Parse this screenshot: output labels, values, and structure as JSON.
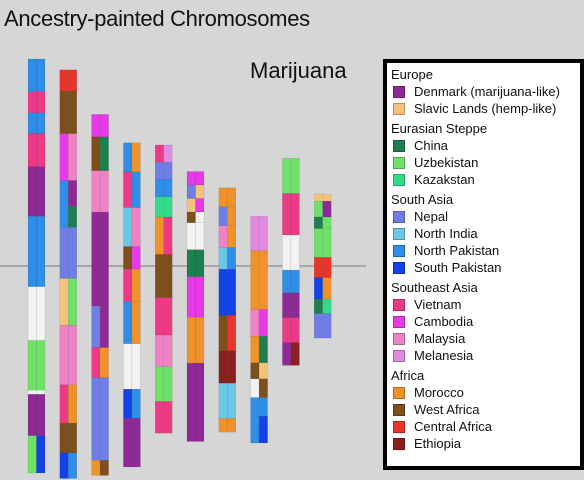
{
  "title": "Ancestry-painted Chromosomes",
  "subject": "Marijuana",
  "colors": {
    "denmark": "#8e2a95",
    "slavic": "#f5c27a",
    "china": "#1e7e4f",
    "uzbekistan": "#6fe06a",
    "kazakstan": "#33dc8a",
    "nepal": "#6f7de6",
    "north_india": "#6cc6e6",
    "north_pakistan": "#2f8ee6",
    "south_pakistan": "#1342e6",
    "vietnam": "#ec3a86",
    "cambodia": "#e63ae6",
    "malaysia": "#ee82c4",
    "melanesia": "#e28ae0",
    "morocco": "#f0922a",
    "west_africa": "#7c4f1c",
    "central_africa": "#e8352a",
    "ethiopia": "#8a1f1f",
    "unknown": "#f2f2f2"
  },
  "legend": [
    {
      "region": "Europe",
      "items": [
        {
          "label": "Denmark (marijuana-like)",
          "color_key": "denmark"
        },
        {
          "label": "Slavic Lands (hemp-like)",
          "color_key": "slavic"
        }
      ]
    },
    {
      "region": "Eurasian Steppe",
      "items": [
        {
          "label": "China",
          "color_key": "china"
        },
        {
          "label": "Uzbekistan",
          "color_key": "uzbekistan"
        },
        {
          "label": "Kazakstan",
          "color_key": "kazakstan"
        }
      ]
    },
    {
      "region": "South Asia",
      "items": [
        {
          "label": "Nepal",
          "color_key": "nepal"
        },
        {
          "label": "North India",
          "color_key": "north_india"
        },
        {
          "label": "North Pakistan",
          "color_key": "north_pakistan"
        },
        {
          "label": "South Pakistan",
          "color_key": "south_pakistan"
        }
      ]
    },
    {
      "region": "Southeast Asia",
      "items": [
        {
          "label": "Vietnam",
          "color_key": "vietnam"
        },
        {
          "label": "Cambodia",
          "color_key": "cambodia"
        },
        {
          "label": "Malaysia",
          "color_key": "malaysia"
        },
        {
          "label": "Melanesia",
          "color_key": "melanesia"
        }
      ]
    },
    {
      "region": "Africa",
      "items": [
        {
          "label": "Morocco",
          "color_key": "morocco"
        },
        {
          "label": "West Africa",
          "color_key": "west_africa"
        },
        {
          "label": "Central Africa",
          "color_key": "central_africa"
        },
        {
          "label": "Ethiopia",
          "color_key": "ethiopia"
        }
      ]
    }
  ],
  "chart_data": {
    "type": "heatmap",
    "title": "Ancestry-painted Chromosomes",
    "subtitle": "Marijuana",
    "length_units": "fraction of longest chromosome",
    "centromere_line": true,
    "chromosomes": [
      {
        "index": 1,
        "length": 1.0,
        "centromere_at": 0.5,
        "haplotypes": [
          [
            [
              "north_pakistan",
              0.08
            ],
            [
              "vietnam",
              0.05
            ],
            [
              "north_pakistan",
              0.05
            ],
            [
              "vietnam",
              0.08
            ],
            [
              "denmark",
              0.12
            ],
            [
              "north_pakistan",
              0.17
            ],
            [
              "unknown",
              0.13
            ],
            [
              "uzbekistan",
              0.12
            ],
            [
              "unknown",
              0.01
            ],
            [
              "denmark",
              0.1
            ],
            [
              "uzbekistan",
              0.09
            ]
          ],
          [
            [
              "north_pakistan",
              0.08
            ],
            [
              "vietnam",
              0.05
            ],
            [
              "north_pakistan",
              0.05
            ],
            [
              "vietnam",
              0.08
            ],
            [
              "denmark",
              0.12
            ],
            [
              "north_pakistan",
              0.17
            ],
            [
              "unknown",
              0.13
            ],
            [
              "uzbekistan",
              0.12
            ],
            [
              "unknown",
              0.01
            ],
            [
              "denmark",
              0.1
            ],
            [
              "south_pakistan",
              0.09
            ]
          ]
        ]
      },
      {
        "index": 2,
        "length": 0.987,
        "centromere_at": 0.48,
        "haplotypes": [
          [
            [
              "central_africa",
              0.05
            ],
            [
              "west_africa",
              0.1
            ],
            [
              "cambodia",
              0.11
            ],
            [
              "north_pakistan",
              0.11
            ],
            [
              "nepal",
              0.12
            ],
            [
              "slavic",
              0.11
            ],
            [
              "malaysia",
              0.14
            ],
            [
              "vietnam",
              0.09
            ],
            [
              "west_africa",
              0.07
            ],
            [
              "south_pakistan",
              0.06
            ]
          ],
          [
            [
              "central_africa",
              0.05
            ],
            [
              "west_africa",
              0.1
            ],
            [
              "malaysia",
              0.11
            ],
            [
              "denmark",
              0.06
            ],
            [
              "china",
              0.05
            ],
            [
              "nepal",
              0.12
            ],
            [
              "uzbekistan",
              0.11
            ],
            [
              "malaysia",
              0.14
            ],
            [
              "morocco",
              0.09
            ],
            [
              "west_africa",
              0.07
            ],
            [
              "north_pakistan",
              0.06
            ]
          ]
        ]
      },
      {
        "index": 3,
        "length": 0.872,
        "centromere_at": 0.42,
        "haplotypes": [
          [
            [
              "cambodia",
              0.06
            ],
            [
              "west_africa",
              0.09
            ],
            [
              "malaysia",
              0.11
            ],
            [
              "denmark",
              0.25
            ],
            [
              "nepal",
              0.11
            ],
            [
              "vietnam",
              0.08
            ],
            [
              "nepal",
              0.22
            ],
            [
              "morocco",
              0.04
            ]
          ],
          [
            [
              "cambodia",
              0.06
            ],
            [
              "china",
              0.09
            ],
            [
              "malaysia",
              0.11
            ],
            [
              "denmark",
              0.25
            ],
            [
              "denmark",
              0.11
            ],
            [
              "morocco",
              0.08
            ],
            [
              "nepal",
              0.22
            ],
            [
              "west_africa",
              0.04
            ]
          ]
        ]
      },
      {
        "index": 4,
        "length": 0.783,
        "centromere_at": 0.38,
        "haplotypes": [
          [
            [
              "north_pakistan",
              0.09
            ],
            [
              "vietnam",
              0.11
            ],
            [
              "north_india",
              0.12
            ],
            [
              "west_africa",
              0.07
            ],
            [
              "vietnam",
              0.1
            ],
            [
              "north_pakistan",
              0.13
            ],
            [
              "unknown",
              0.14
            ],
            [
              "south_pakistan",
              0.09
            ],
            [
              "denmark",
              0.15
            ]
          ],
          [
            [
              "morocco",
              0.09
            ],
            [
              "north_pakistan",
              0.11
            ],
            [
              "malaysia",
              0.12
            ],
            [
              "cambodia",
              0.07
            ],
            [
              "morocco",
              0.1
            ],
            [
              "morocco",
              0.13
            ],
            [
              "unknown",
              0.14
            ],
            [
              "north_pakistan",
              0.09
            ],
            [
              "denmark",
              0.15
            ]
          ]
        ]
      },
      {
        "index": 5,
        "length": 0.696,
        "centromere_at": 0.42,
        "haplotypes": [
          [
            [
              "vietnam",
              0.06
            ],
            [
              "nepal",
              0.06
            ],
            [
              "north_pakistan",
              0.06
            ],
            [
              "kazakstan",
              0.07
            ],
            [
              "morocco",
              0.13
            ],
            [
              "west_africa",
              0.15
            ],
            [
              "vietnam",
              0.13
            ],
            [
              "malaysia",
              0.11
            ],
            [
              "uzbekistan",
              0.12
            ],
            [
              "vietnam",
              0.11
            ]
          ],
          [
            [
              "melanesia",
              0.06
            ],
            [
              "nepal",
              0.06
            ],
            [
              "north_pakistan",
              0.06
            ],
            [
              "kazakstan",
              0.07
            ],
            [
              "vietnam",
              0.13
            ],
            [
              "west_africa",
              0.15
            ],
            [
              "vietnam",
              0.13
            ],
            [
              "malaysia",
              0.11
            ],
            [
              "uzbekistan",
              0.12
            ],
            [
              "vietnam",
              0.11
            ]
          ]
        ]
      },
      {
        "index": 6,
        "length": 0.652,
        "centromere_at": 0.35,
        "haplotypes": [
          [
            [
              "cambodia",
              0.05
            ],
            [
              "nepal",
              0.05
            ],
            [
              "slavic",
              0.05
            ],
            [
              "west_africa",
              0.04
            ],
            [
              "unknown",
              0.1
            ],
            [
              "china",
              0.1
            ],
            [
              "cambodia",
              0.15
            ],
            [
              "morocco",
              0.17
            ],
            [
              "denmark",
              0.29
            ]
          ],
          [
            [
              "cambodia",
              0.05
            ],
            [
              "slavic",
              0.05
            ],
            [
              "cambodia",
              0.05
            ],
            [
              "unknown",
              0.04
            ],
            [
              "unknown",
              0.1
            ],
            [
              "china",
              0.1
            ],
            [
              "cambodia",
              0.15
            ],
            [
              "morocco",
              0.17
            ],
            [
              "denmark",
              0.29
            ]
          ]
        ]
      },
      {
        "index": 7,
        "length": 0.59,
        "centromere_at": 0.32,
        "haplotypes": [
          [
            [
              "morocco",
              0.07
            ],
            [
              "nepal",
              0.07
            ],
            [
              "malaysia",
              0.08
            ],
            [
              "north_india",
              0.08
            ],
            [
              "south_pakistan",
              0.17
            ],
            [
              "west_africa",
              0.13
            ],
            [
              "ethiopia",
              0.12
            ],
            [
              "north_india",
              0.13
            ],
            [
              "morocco",
              0.05
            ]
          ],
          [
            [
              "morocco",
              0.07
            ],
            [
              "morocco",
              0.07
            ],
            [
              "morocco",
              0.08
            ],
            [
              "north_pakistan",
              0.08
            ],
            [
              "south_pakistan",
              0.17
            ],
            [
              "central_africa",
              0.13
            ],
            [
              "ethiopia",
              0.12
            ],
            [
              "north_india",
              0.13
            ],
            [
              "morocco",
              0.05
            ]
          ]
        ]
      },
      {
        "index": 8,
        "length": 0.548,
        "centromere_at": 0.22,
        "haplotypes": [
          [
            [
              "melanesia",
              0.13
            ],
            [
              "morocco",
              0.22
            ],
            [
              "malaysia",
              0.1
            ],
            [
              "morocco",
              0.1
            ],
            [
              "west_africa",
              0.06
            ],
            [
              "unknown",
              0.07
            ],
            [
              "north_pakistan",
              0.07
            ],
            [
              "north_pakistan",
              0.1
            ]
          ],
          [
            [
              "melanesia",
              0.13
            ],
            [
              "morocco",
              0.22
            ],
            [
              "cambodia",
              0.1
            ],
            [
              "china",
              0.1
            ],
            [
              "slavic",
              0.06
            ],
            [
              "west_africa",
              0.07
            ],
            [
              "north_pakistan",
              0.07
            ],
            [
              "south_pakistan",
              0.1
            ]
          ]
        ]
      },
      {
        "index": 9,
        "length": 0.5,
        "centromere_at": 0.52,
        "haplotypes": [
          [
            [
              "uzbekistan",
              0.17
            ],
            [
              "vietnam",
              0.2
            ],
            [
              "unknown",
              0.17
            ],
            [
              "north_pakistan",
              0.11
            ],
            [
              "denmark",
              0.12
            ],
            [
              "vietnam",
              0.12
            ],
            [
              "denmark",
              0.11
            ]
          ],
          [
            [
              "uzbekistan",
              0.17
            ],
            [
              "vietnam",
              0.2
            ],
            [
              "unknown",
              0.17
            ],
            [
              "north_pakistan",
              0.11
            ],
            [
              "denmark",
              0.12
            ],
            [
              "vietnam",
              0.12
            ],
            [
              "ethiopia",
              0.11
            ]
          ]
        ]
      },
      {
        "index": 10,
        "length": 0.348,
        "centromere_at": 0.5,
        "haplotypes": [
          [
            [
              "slavic",
              0.05
            ],
            [
              "uzbekistan",
              0.11
            ],
            [
              "china",
              0.08
            ],
            [
              "uzbekistan",
              0.2
            ],
            [
              "central_africa",
              0.14
            ],
            [
              "south_pakistan",
              0.15
            ],
            [
              "china",
              0.1
            ],
            [
              "nepal",
              0.17
            ]
          ],
          [
            [
              "slavic",
              0.05
            ],
            [
              "denmark",
              0.11
            ],
            [
              "uzbekistan",
              0.08
            ],
            [
              "uzbekistan",
              0.2
            ],
            [
              "central_africa",
              0.14
            ],
            [
              "morocco",
              0.15
            ],
            [
              "kazakstan",
              0.1
            ],
            [
              "nepal",
              0.17
            ]
          ]
        ]
      }
    ]
  }
}
